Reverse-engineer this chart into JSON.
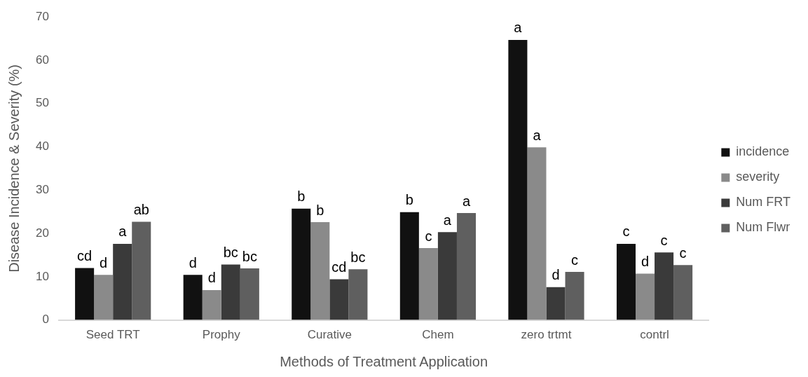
{
  "chart_data": {
    "type": "bar",
    "xlabel": "Methods of Treatment Application",
    "ylabel": "Disease Incidence & Severity (%)",
    "categories": [
      "Seed TRT",
      "Prophy",
      "Curative",
      "Chem",
      "zero trtmt",
      "contrl"
    ],
    "series": [
      {
        "name": "incidence",
        "color": "#111111",
        "values": [
          12.0,
          10.4,
          25.7,
          24.9,
          64.7,
          17.6
        ],
        "value_labels": [
          "cd",
          "d",
          "b",
          "b",
          "a",
          "c"
        ]
      },
      {
        "name": "severity",
        "color": "#8a8a8a",
        "values": [
          10.4,
          6.9,
          22.6,
          16.6,
          39.9,
          10.7
        ],
        "value_labels": [
          "d",
          "d",
          "b",
          "c",
          "a",
          "d"
        ]
      },
      {
        "name": "Num FRT",
        "color": "#3a3a3a",
        "values": [
          17.6,
          12.8,
          9.4,
          20.3,
          7.6,
          15.6
        ],
        "value_labels": [
          "a",
          "bc",
          "cd",
          "a",
          "d",
          "c"
        ]
      },
      {
        "name": "Num Flwr",
        "color": "#5f5f5f",
        "values": [
          22.7,
          11.9,
          11.7,
          24.7,
          11.1,
          12.7
        ],
        "value_labels": [
          "ab",
          "bc",
          "bc",
          "a",
          "c",
          "c"
        ]
      }
    ],
    "ylim": [
      0,
      70
    ],
    "yticks": [
      0,
      10,
      20,
      30,
      40,
      50,
      60,
      70
    ],
    "grid": false,
    "legend": "right"
  }
}
